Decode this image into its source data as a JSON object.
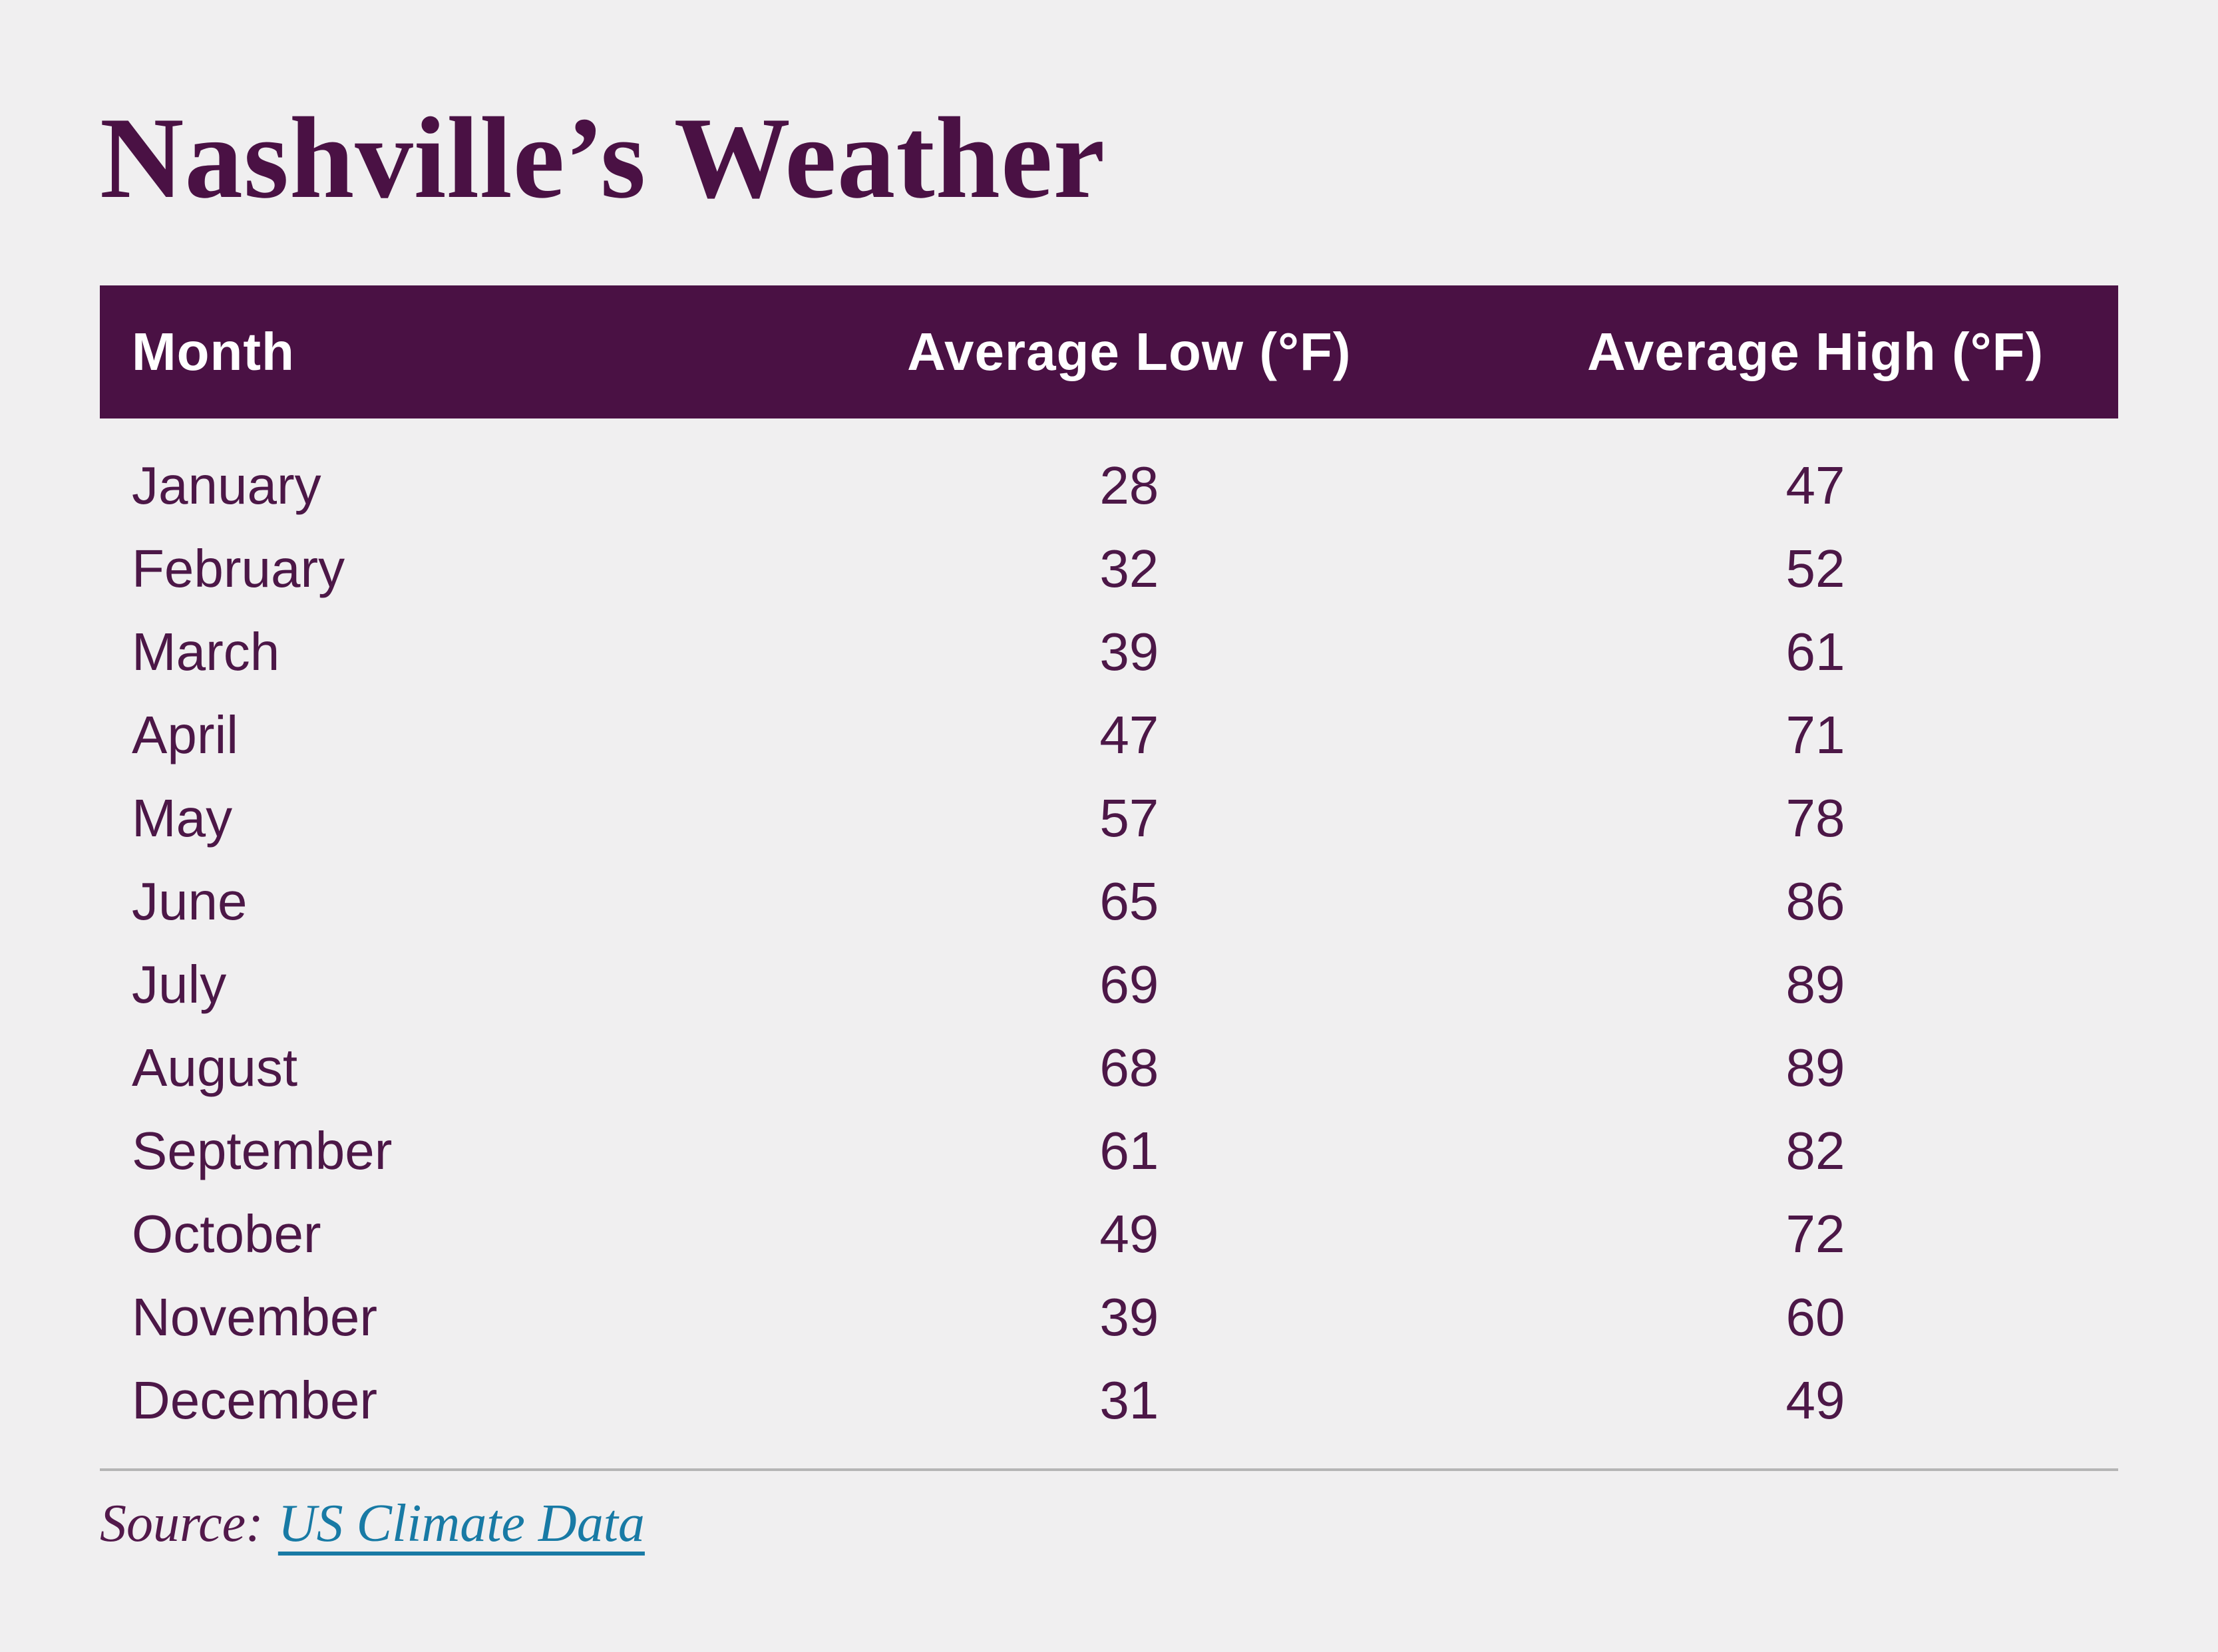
{
  "chart_data": {
    "type": "table",
    "title": "Nashville’s Weather",
    "columns": [
      "Month",
      "Average Low (°F)",
      "Average High (°F)"
    ],
    "categories": [
      "January",
      "February",
      "March",
      "April",
      "May",
      "June",
      "July",
      "August",
      "September",
      "October",
      "November",
      "December"
    ],
    "series": [
      {
        "name": "Average Low (°F)",
        "values": [
          28,
          32,
          39,
          47,
          57,
          65,
          69,
          68,
          61,
          49,
          39,
          31
        ]
      },
      {
        "name": "Average High (°F)",
        "values": [
          47,
          52,
          61,
          71,
          78,
          86,
          89,
          89,
          82,
          72,
          60,
          49
        ]
      }
    ],
    "legend_position": "none",
    "grid": false,
    "source": "US Climate Data"
  },
  "footer": {
    "source_label": "Source:",
    "source_link_text": "US Climate Data"
  },
  "colors": {
    "background": "#f0eff0",
    "brand_purple": "#4a1144",
    "header_text": "#ffffff",
    "row_text": "#4c1747",
    "divider_gray": "#b5b5b5",
    "link_teal": "#187aa5"
  }
}
